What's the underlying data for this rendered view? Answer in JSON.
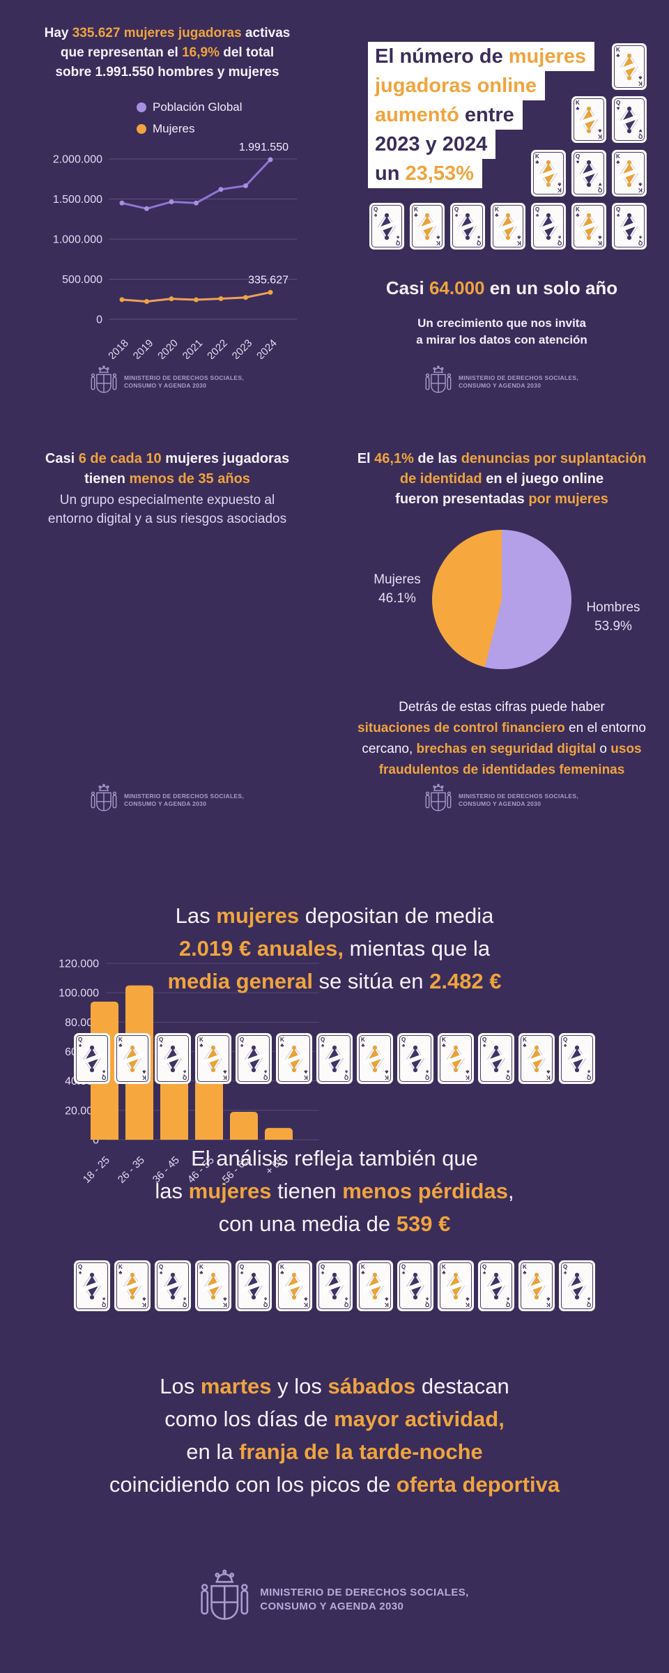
{
  "page": {
    "bg": "#3a2d5a",
    "accent_orange": "#f0a43e",
    "accent_purple": "#a78fe3",
    "white": "#f6f2fb"
  },
  "ministry": {
    "line1": "MINISTERIO DE DERECHOS SOCIALES,",
    "line2": "CONSUMO Y AGENDA 2030"
  },
  "panels": {
    "top_left": {
      "headline": [
        [
          {
            "t": "Hay ",
            "c": "w"
          },
          {
            "t": "335.627 mujeres jugadoras",
            "c": "o"
          },
          {
            "t": " activas",
            "c": "w"
          }
        ],
        [
          {
            "t": "que representan el ",
            "c": "w"
          },
          {
            "t": "16,9%",
            "c": "o"
          },
          {
            "t": " del total",
            "c": "w"
          }
        ],
        [
          {
            "t": "sobre 1.991.550 hombres y mujeres",
            "c": "w"
          }
        ]
      ]
    },
    "top_right": {
      "white_lines": [
        [
          {
            "t": "El número de ",
            "c": "d"
          },
          {
            "t": "mujeres",
            "c": "o"
          }
        ],
        [
          {
            "t": "jugadoras online",
            "c": "o"
          }
        ],
        [
          {
            "t": "aumentó",
            "c": "o"
          },
          {
            "t": " entre",
            "c": "d"
          }
        ],
        [
          {
            "t": "2023 y 2024",
            "c": "d"
          }
        ],
        [
          {
            "t": "un ",
            "c": "d"
          },
          {
            "t": "23,53%",
            "c": "o"
          }
        ]
      ],
      "growth_line": [
        {
          "t": "Casi ",
          "c": "w"
        },
        {
          "t": "64.000",
          "c": "o"
        },
        {
          "t": " en un solo año",
          "c": "w"
        }
      ],
      "growth_sub": [
        "Un crecimiento que nos invita",
        "a mirar los datos con atención"
      ]
    },
    "mid_left": {
      "headline": [
        [
          {
            "t": "Casi ",
            "c": "w"
          },
          {
            "t": "6 de cada 10",
            "c": "o"
          },
          {
            "t": " mujeres jugadoras",
            "c": "w"
          }
        ],
        [
          {
            "t": "tienen ",
            "c": "w"
          },
          {
            "t": "menos de 35 años",
            "c": "o"
          }
        ]
      ],
      "sub": [
        "Un grupo especialmente expuesto al",
        "entorno digital y a sus riesgos asociados"
      ]
    },
    "mid_right": {
      "headline": [
        [
          {
            "t": "El ",
            "c": "w"
          },
          {
            "t": "46,1%",
            "c": "o"
          },
          {
            "t": " de las ",
            "c": "w"
          },
          {
            "t": "denuncias por suplantación",
            "c": "o"
          }
        ],
        [
          {
            "t": "de identidad",
            "c": "o"
          },
          {
            "t": " en el juego online",
            "c": "w"
          }
        ],
        [
          {
            "t": "fueron presentadas ",
            "c": "w"
          },
          {
            "t": "por mujeres",
            "c": "o"
          }
        ]
      ],
      "note": [
        [
          {
            "t": "Detrás de estas cifras puede haber",
            "c": "w"
          }
        ],
        [
          {
            "t": "situaciones de control financiero",
            "c": "ob"
          },
          {
            "t": " en el entorno",
            "c": "w"
          }
        ],
        [
          {
            "t": "cercano, ",
            "c": "w"
          },
          {
            "t": "brechas en seguridad digital",
            "c": "ob"
          },
          {
            "t": " o ",
            "c": "w"
          },
          {
            "t": "usos",
            "c": "ob"
          }
        ],
        [
          {
            "t": "fraudulentos de identidades femeninas",
            "c": "ob"
          }
        ]
      ]
    },
    "bottom": {
      "deposits": [
        [
          {
            "t": "Las ",
            "c": "w"
          },
          {
            "t": "mujeres",
            "c": "ob"
          },
          {
            "t": " depositan de media",
            "c": "w"
          }
        ],
        [
          {
            "t": "2.019 € anuales,",
            "c": "ob"
          },
          {
            "t": " mientas que la",
            "c": "w"
          }
        ],
        [
          {
            "t": "media general",
            "c": "ob"
          },
          {
            "t": " se sitúa en ",
            "c": "w"
          },
          {
            "t": "2.482 €",
            "c": "ob"
          }
        ]
      ],
      "losses": [
        [
          {
            "t": "El análisis refleja también que",
            "c": "w"
          }
        ],
        [
          {
            "t": "las ",
            "c": "w"
          },
          {
            "t": "mujeres",
            "c": "ob"
          },
          {
            "t": " tienen ",
            "c": "w"
          },
          {
            "t": "menos pérdidas",
            "c": "ob"
          },
          {
            "t": ",",
            "c": "w"
          }
        ],
        [
          {
            "t": "con una media de ",
            "c": "w"
          },
          {
            "t": "539 €",
            "c": "ob"
          }
        ]
      ],
      "days": [
        [
          {
            "t": "Los ",
            "c": "w"
          },
          {
            "t": "martes",
            "c": "ob"
          },
          {
            "t": " y los ",
            "c": "w"
          },
          {
            "t": "sábados",
            "c": "ob"
          },
          {
            "t": " destacan",
            "c": "w"
          }
        ],
        [
          {
            "t": "como los días de ",
            "c": "w"
          },
          {
            "t": "mayor actividad,",
            "c": "ob"
          }
        ],
        [
          {
            "t": "en la ",
            "c": "w"
          },
          {
            "t": "franja de la tarde-noche",
            "c": "ob"
          }
        ],
        [
          {
            "t": "coincidiendo con los picos de ",
            "c": "w"
          },
          {
            "t": "oferta deportiva",
            "c": "ob"
          }
        ]
      ]
    }
  },
  "cards": {
    "pyramid_rows": [
      [
        "K♣"
      ],
      [
        "K♣",
        "Q♥"
      ],
      [
        "K♣",
        "Q♥",
        "K♣"
      ],
      [
        "Q♠",
        "K♣",
        "Q♠",
        "K♣",
        "Q♠",
        "K♣",
        "Q♠"
      ]
    ],
    "row_deposits": [
      "Q♠",
      "K♣",
      "Q♠",
      "K♣",
      "Q♠",
      "K♣",
      "Q♠",
      "K♣",
      "Q♠",
      "K♣",
      "Q♠",
      "K♣",
      "Q♠"
    ],
    "row_losses": [
      "Q♠",
      "K♣",
      "Q♠",
      "K♣",
      "Q♠",
      "K♣",
      "Q♠",
      "K♣",
      "Q♠",
      "K♣",
      "Q♠",
      "K♣",
      "Q♠"
    ]
  },
  "chart_data": [
    {
      "type": "line",
      "x": [
        "2018",
        "2019",
        "2020",
        "2021",
        "2022",
        "2023",
        "2024"
      ],
      "series": [
        {
          "name": "Población Global",
          "color": "#8d76d6",
          "marker": "#a78fe3",
          "values": [
            1450000,
            1380000,
            1465000,
            1450000,
            1620000,
            1665000,
            1991550
          ]
        },
        {
          "name": "Mujeres",
          "color": "#eda158",
          "marker": "#f0a43e",
          "values": [
            245000,
            222000,
            255000,
            243000,
            257000,
            271700,
            335627
          ]
        }
      ],
      "yticks": [
        {
          "v": 2000000,
          "label": "2.000.000"
        },
        {
          "v": 1500000,
          "label": "1.500.000"
        },
        {
          "v": 1000000,
          "label": "1.000.000"
        },
        {
          "v": 500000,
          "label": "500.000"
        },
        {
          "v": 0,
          "label": "0"
        }
      ],
      "ylim": [
        0,
        2000000
      ],
      "grid": true,
      "legend_position": "top-center",
      "annotations": [
        {
          "series": 0,
          "label": "1.991.550"
        },
        {
          "series": 1,
          "label": "335.627"
        }
      ]
    },
    {
      "type": "bar",
      "categories": [
        "18 - 25",
        "26 - 35",
        "36 - 45",
        "46 - 55",
        "56 - 65",
        "+ 65"
      ],
      "values": [
        94000,
        105000,
        67000,
        41000,
        19000,
        8000
      ],
      "bar_color": "#f6a83f",
      "yticks": [
        {
          "v": 120000,
          "label": "120.000"
        },
        {
          "v": 100000,
          "label": "100.000"
        },
        {
          "v": 80000,
          "label": "80.000"
        },
        {
          "v": 60000,
          "label": "60.000"
        },
        {
          "v": 40000,
          "label": "40.000"
        },
        {
          "v": 20000,
          "label": "20.000"
        },
        {
          "v": 0,
          "label": "0"
        }
      ],
      "ylim": [
        0,
        120000
      ],
      "grid": true
    },
    {
      "type": "pie",
      "labels": [
        "Mujeres",
        "Hombres"
      ],
      "values": [
        46.1,
        53.9
      ],
      "colors": [
        "#f6a83f",
        "#b3a0e8"
      ],
      "label_left": {
        "name": "Mujeres",
        "pct": "46.1%"
      },
      "label_right": {
        "name": "Hombres",
        "pct": "53.9%"
      }
    }
  ]
}
